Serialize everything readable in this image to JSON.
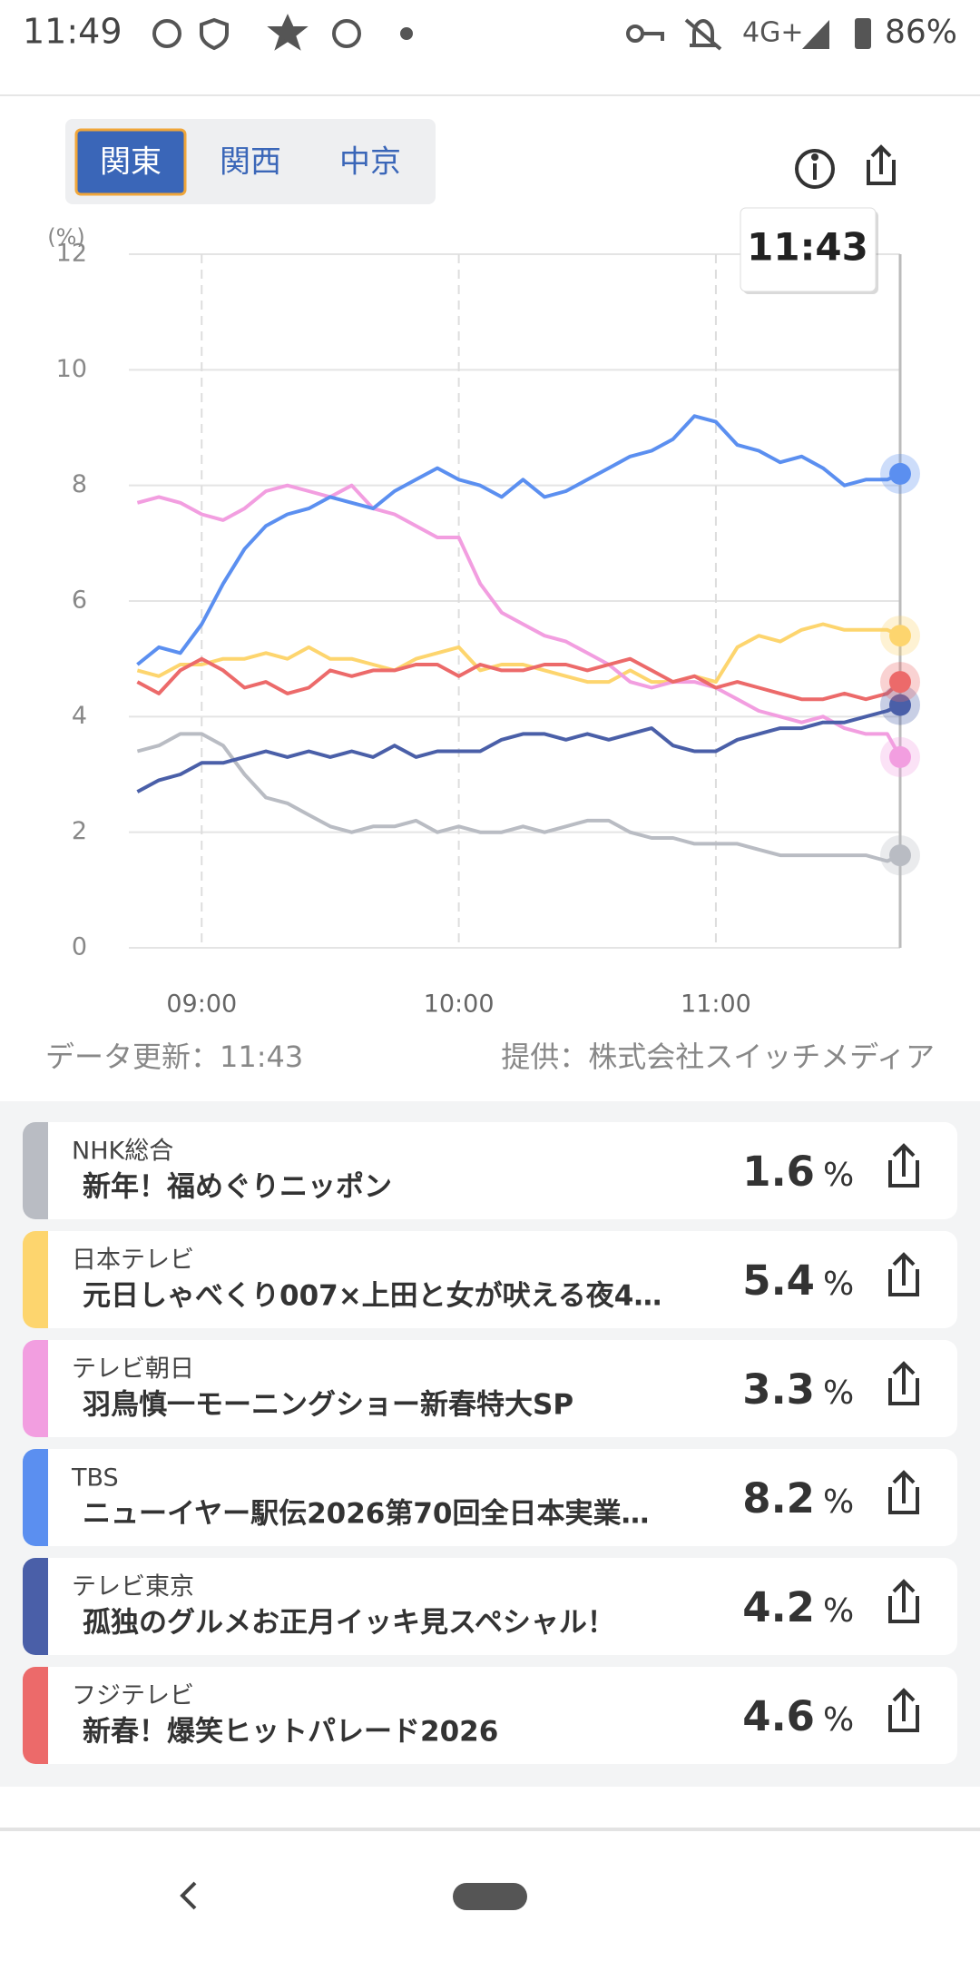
{
  "status": {
    "time": "11:49",
    "network": "4G+",
    "battery": "86%"
  },
  "tabs": [
    "関東",
    "関西",
    "中京"
  ],
  "selected_tab": 0,
  "chart_data": {
    "type": "line",
    "y_label": "(%)",
    "x": [
      "08:45",
      "08:50",
      "08:55",
      "09:00",
      "09:05",
      "09:10",
      "09:15",
      "09:20",
      "09:25",
      "09:30",
      "09:35",
      "09:40",
      "09:45",
      "09:50",
      "09:55",
      "10:00",
      "10:05",
      "10:10",
      "10:15",
      "10:20",
      "10:25",
      "10:30",
      "10:35",
      "10:40",
      "10:45",
      "10:50",
      "10:55",
      "11:00",
      "11:05",
      "11:10",
      "11:15",
      "11:20",
      "11:25",
      "11:30",
      "11:35",
      "11:40",
      "11:43"
    ],
    "xlim": [
      "08:43",
      "11:43"
    ],
    "xticks": [
      "09:00",
      "10:00",
      "11:00"
    ],
    "ylim": [
      0,
      12
    ],
    "yticks": [
      0,
      2,
      4,
      6,
      8,
      10,
      12
    ],
    "grid": true,
    "series": [
      {
        "name": "NHK総合",
        "color": "#b9bcc3",
        "values": [
          3.4,
          3.5,
          3.7,
          3.7,
          3.5,
          3.0,
          2.6,
          2.5,
          2.3,
          2.1,
          2.0,
          2.1,
          2.1,
          2.2,
          2.0,
          2.1,
          2.0,
          2.0,
          2.1,
          2.0,
          2.1,
          2.2,
          2.2,
          2.0,
          1.9,
          1.9,
          1.8,
          1.8,
          1.8,
          1.7,
          1.6,
          1.6,
          1.6,
          1.6,
          1.6,
          1.5,
          1.6
        ]
      },
      {
        "name": "日本テレビ",
        "color": "#fdd56e",
        "values": [
          4.8,
          4.7,
          4.9,
          4.9,
          5.0,
          5.0,
          5.1,
          5.0,
          5.2,
          5.0,
          5.0,
          4.9,
          4.8,
          5.0,
          5.1,
          5.2,
          4.8,
          4.9,
          4.9,
          4.8,
          4.7,
          4.6,
          4.6,
          4.8,
          4.6,
          4.6,
          4.7,
          4.6,
          5.2,
          5.4,
          5.3,
          5.5,
          5.6,
          5.5,
          5.5,
          5.5,
          5.4
        ]
      },
      {
        "name": "テレビ朝日",
        "color": "#f29ee0",
        "values": [
          7.7,
          7.8,
          7.7,
          7.5,
          7.4,
          7.6,
          7.9,
          8.0,
          7.9,
          7.8,
          8.0,
          7.6,
          7.5,
          7.3,
          7.1,
          7.1,
          6.3,
          5.8,
          5.6,
          5.4,
          5.3,
          5.1,
          4.9,
          4.6,
          4.5,
          4.6,
          4.6,
          4.5,
          4.3,
          4.1,
          4.0,
          3.9,
          4.0,
          3.8,
          3.7,
          3.7,
          3.3
        ]
      },
      {
        "name": "TBS",
        "color": "#5b8ff0",
        "values": [
          4.9,
          5.2,
          5.1,
          5.6,
          6.3,
          6.9,
          7.3,
          7.5,
          7.6,
          7.8,
          7.7,
          7.6,
          7.9,
          8.1,
          8.3,
          8.1,
          8.0,
          7.8,
          8.1,
          7.8,
          7.9,
          8.1,
          8.3,
          8.5,
          8.6,
          8.8,
          9.2,
          9.1,
          8.7,
          8.6,
          8.4,
          8.5,
          8.3,
          8.0,
          8.1,
          8.1,
          8.2
        ]
      },
      {
        "name": "テレビ東京",
        "color": "#4a5fa8",
        "values": [
          2.7,
          2.9,
          3.0,
          3.2,
          3.2,
          3.3,
          3.4,
          3.3,
          3.4,
          3.3,
          3.4,
          3.3,
          3.5,
          3.3,
          3.4,
          3.4,
          3.4,
          3.6,
          3.7,
          3.7,
          3.6,
          3.7,
          3.6,
          3.7,
          3.8,
          3.5,
          3.4,
          3.4,
          3.6,
          3.7,
          3.8,
          3.8,
          3.9,
          3.9,
          4.0,
          4.1,
          4.2
        ]
      },
      {
        "name": "フジテレビ",
        "color": "#ec6a6a",
        "values": [
          4.6,
          4.4,
          4.8,
          5.0,
          4.8,
          4.5,
          4.6,
          4.4,
          4.5,
          4.8,
          4.7,
          4.8,
          4.8,
          4.9,
          4.9,
          4.7,
          4.9,
          4.8,
          4.8,
          4.9,
          4.9,
          4.8,
          4.9,
          5.0,
          4.8,
          4.6,
          4.7,
          4.5,
          4.6,
          4.5,
          4.4,
          4.3,
          4.3,
          4.4,
          4.3,
          4.4,
          4.6
        ]
      }
    ]
  },
  "footer": {
    "updated": "データ更新：11:43",
    "provider": "提供：株式会社スイッチメディア"
  },
  "list": {
    "unit": "%",
    "programs": [
      "新年！福めぐりニッポン",
      "元日しゃべくり007×上田と女が吠える夜4…",
      "羽鳥慎一モーニングショー新春特大SP",
      "ニューイヤー駅伝2026第70回全日本実業…",
      "孤独のグルメお正月イッキ見スペシャル！",
      "新春！爆笑ヒットパレード2026"
    ]
  }
}
